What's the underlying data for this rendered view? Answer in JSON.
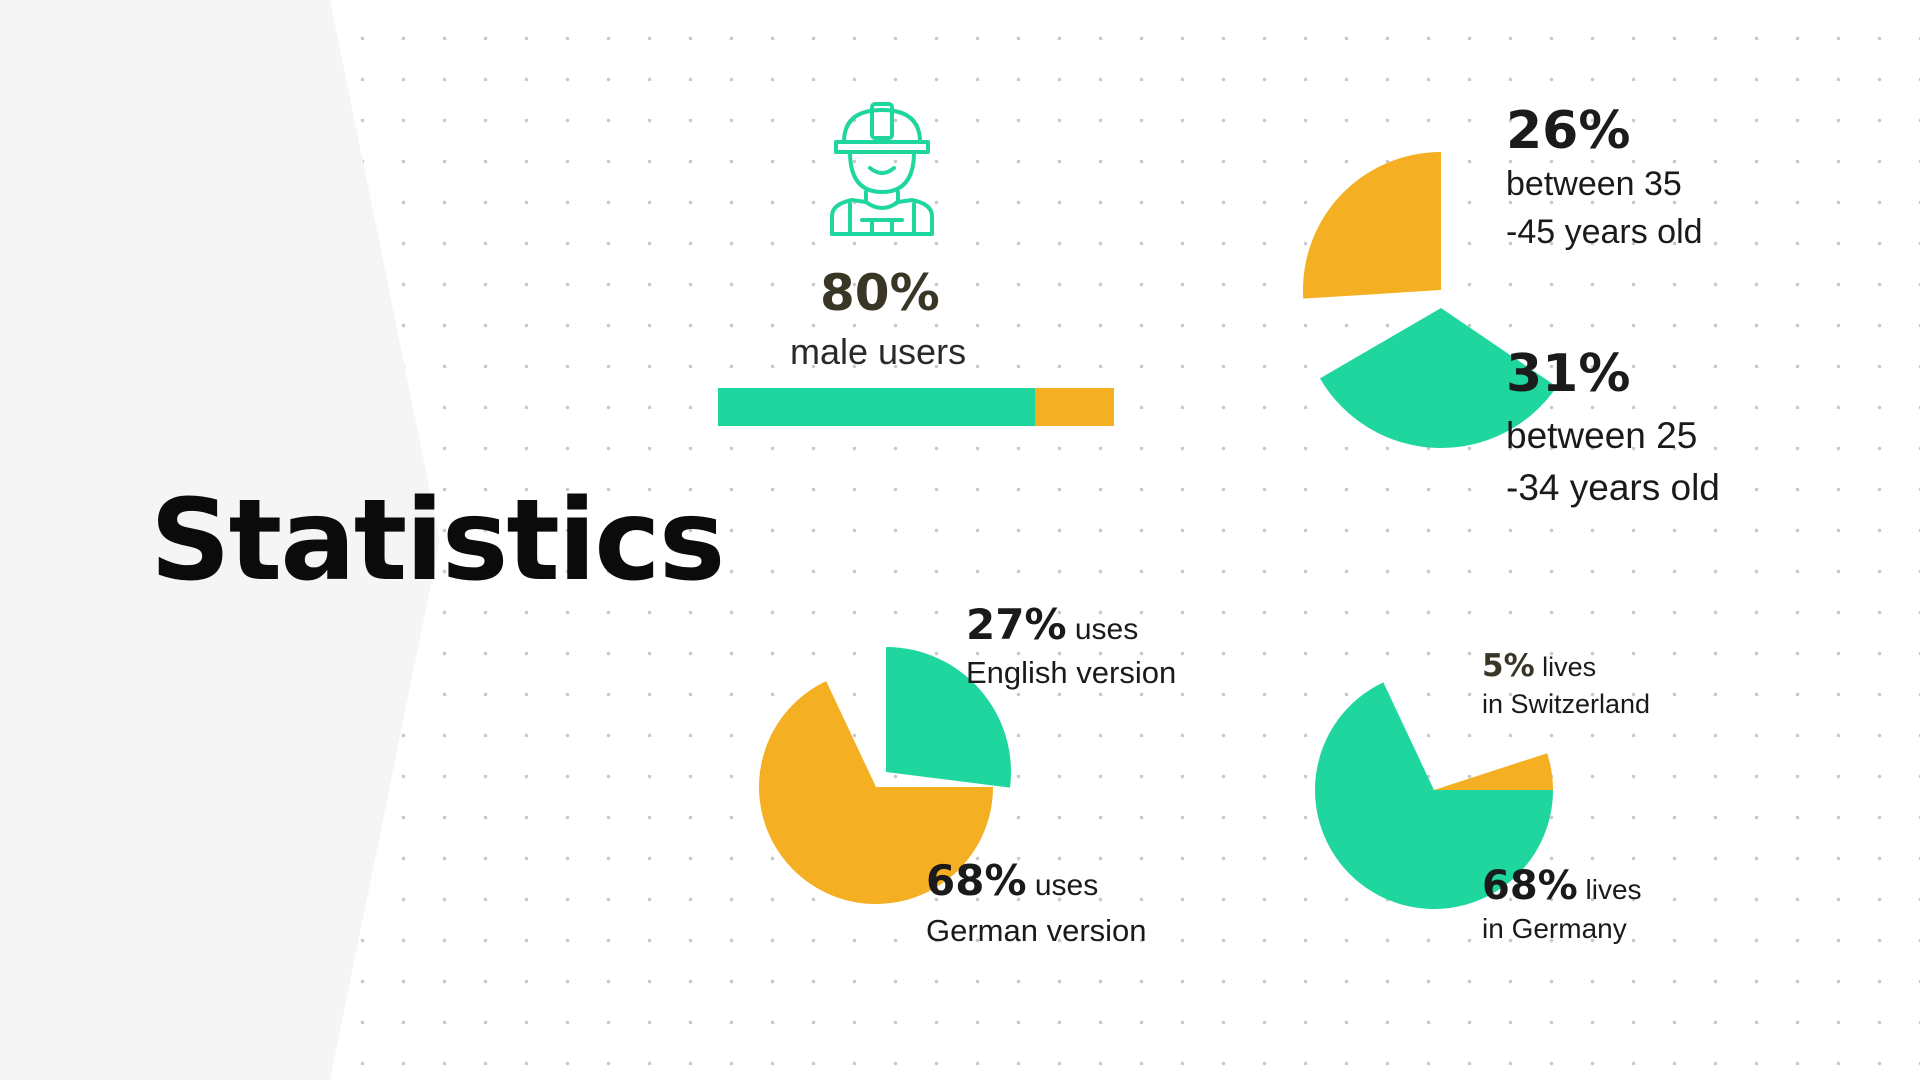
{
  "title": "Statistics",
  "colors": {
    "green": "#1fd69f",
    "orange": "#f5af22",
    "side": "#f5f5f5"
  },
  "icon": "worker-with-helmet-icon",
  "chart_data": [
    {
      "type": "bar",
      "label": "male users",
      "pct_text": "80%",
      "value": 80,
      "max": 100
    },
    {
      "type": "pie",
      "slices": [
        {
          "pct": "26%",
          "value": 26,
          "lines": [
            "between 35",
            "-45 years old"
          ],
          "color": "orange"
        },
        {
          "pct": "31%",
          "value": 31,
          "lines": [
            "between 25",
            "-34 years old"
          ],
          "color": "green"
        }
      ]
    },
    {
      "type": "pie",
      "slices": [
        {
          "pct": "27%",
          "value": 27,
          "line1": "uses",
          "line2": "English version",
          "color": "green"
        },
        {
          "pct": "68%",
          "value": 68,
          "line1": "uses",
          "line2": "German version",
          "color": "orange"
        }
      ]
    },
    {
      "type": "pie",
      "slices": [
        {
          "pct": "5%",
          "value": 5,
          "line1": "lives",
          "line2": "in Switzerland",
          "color": "orange"
        },
        {
          "pct": "68%",
          "value": 68,
          "line1": "lives",
          "line2": "in Germany",
          "color": "green"
        }
      ]
    }
  ]
}
